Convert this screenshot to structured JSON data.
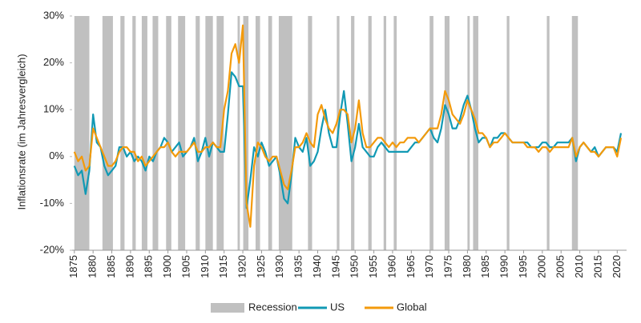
{
  "chart_data": {
    "type": "line",
    "y_label": "Inflationsrate (im Jahresvergleich)",
    "x": [
      1875,
      1876,
      1877,
      1878,
      1879,
      1880,
      1881,
      1882,
      1883,
      1884,
      1885,
      1886,
      1887,
      1888,
      1889,
      1890,
      1891,
      1892,
      1893,
      1894,
      1895,
      1896,
      1897,
      1898,
      1899,
      1900,
      1901,
      1902,
      1903,
      1904,
      1905,
      1906,
      1907,
      1908,
      1909,
      1910,
      1911,
      1912,
      1913,
      1914,
      1915,
      1916,
      1917,
      1918,
      1919,
      1920,
      1921,
      1922,
      1923,
      1924,
      1925,
      1926,
      1927,
      1928,
      1929,
      1930,
      1931,
      1932,
      1933,
      1934,
      1935,
      1936,
      1937,
      1938,
      1939,
      1940,
      1941,
      1942,
      1943,
      1944,
      1945,
      1946,
      1947,
      1948,
      1949,
      1950,
      1951,
      1952,
      1953,
      1954,
      1955,
      1956,
      1957,
      1958,
      1959,
      1960,
      1961,
      1962,
      1963,
      1964,
      1965,
      1966,
      1967,
      1968,
      1969,
      1970,
      1971,
      1972,
      1973,
      1974,
      1975,
      1976,
      1977,
      1978,
      1979,
      1980,
      1981,
      1982,
      1983,
      1984,
      1985,
      1986,
      1987,
      1988,
      1989,
      1990,
      1991,
      1992,
      1993,
      1994,
      1995,
      1996,
      1997,
      1998,
      1999,
      2000,
      2001,
      2002,
      2003,
      2004,
      2005,
      2006,
      2007,
      2008,
      2009,
      2010,
      2011,
      2012,
      2013,
      2014,
      2015,
      2016,
      2017,
      2018,
      2019,
      2020,
      2021
    ],
    "series": [
      {
        "name": "US",
        "color": "#1199b4",
        "values": [
          -2,
          -4,
          -3,
          -8,
          -3,
          9,
          3,
          2,
          -2,
          -4,
          -3,
          -2,
          2,
          2,
          0,
          1,
          -1,
          0,
          -1,
          -3,
          0,
          -1,
          1,
          2,
          4,
          3,
          1,
          2,
          3,
          0,
          1,
          2,
          4,
          -1,
          1,
          4,
          0,
          3,
          2,
          1,
          1,
          9,
          18,
          17,
          15,
          15,
          -11,
          -5,
          2,
          0,
          3,
          1,
          -2,
          -1,
          0,
          -4,
          -9,
          -10,
          -4,
          4,
          2,
          1,
          4,
          -2,
          -1,
          1,
          6,
          10,
          5,
          2,
          2,
          9,
          14,
          7,
          -1,
          2,
          7,
          2,
          1,
          0,
          0,
          2,
          3,
          2,
          1,
          1,
          1,
          1,
          1,
          1,
          2,
          3,
          3,
          4,
          5,
          6,
          4,
          3,
          6,
          11,
          9,
          6,
          6,
          8,
          11,
          13,
          10,
          6,
          3,
          4,
          4,
          2,
          4,
          4,
          5,
          5,
          4,
          3,
          3,
          3,
          3,
          3,
          2,
          2,
          2,
          3,
          3,
          2,
          2,
          3,
          3,
          3,
          3,
          4,
          -1,
          2,
          3,
          2,
          1,
          2,
          0,
          1,
          2,
          2,
          2,
          1,
          5
        ]
      },
      {
        "name": "Global",
        "color": "#f39a0b",
        "values": [
          1,
          -1,
          0,
          -3,
          -2,
          6,
          4,
          2,
          0,
          -2,
          -2,
          -1,
          1,
          2,
          2,
          1,
          1,
          -1,
          0,
          -2,
          -1,
          0,
          1,
          2,
          2,
          3,
          1,
          0,
          1,
          1,
          1,
          2,
          3,
          1,
          1,
          2,
          2,
          3,
          2,
          2,
          10,
          14,
          22,
          24,
          20,
          28,
          -10,
          -15,
          -2,
          3,
          2,
          0,
          -1,
          0,
          0,
          -3,
          -6,
          -7,
          -3,
          2,
          2,
          3,
          5,
          3,
          2,
          9,
          11,
          8,
          6,
          5,
          7,
          10,
          10,
          9,
          3,
          6,
          12,
          5,
          2,
          2,
          3,
          4,
          4,
          3,
          2,
          3,
          2,
          3,
          3,
          4,
          4,
          4,
          3,
          4,
          5,
          6,
          6,
          6,
          9,
          14,
          12,
          9,
          8,
          7,
          9,
          12,
          10,
          8,
          5,
          5,
          4,
          2,
          3,
          3,
          4,
          5,
          4,
          3,
          3,
          3,
          3,
          2,
          2,
          2,
          1,
          2,
          2,
          1,
          2,
          2,
          2,
          2,
          2,
          4,
          0,
          2,
          3,
          2,
          1,
          1,
          0,
          1,
          2,
          2,
          2,
          0,
          4
        ]
      }
    ],
    "recessions": {
      "name": "Recession",
      "color": "#c0c0c0",
      "periods": [
        [
          1875,
          1879
        ],
        [
          1882.5,
          1885.3
        ],
        [
          1887.3,
          1888.4
        ],
        [
          1890.5,
          1891.4
        ],
        [
          1893,
          1894.5
        ],
        [
          1895.9,
          1897.4
        ],
        [
          1899.5,
          1900.9
        ],
        [
          1902.7,
          1904.6
        ],
        [
          1907.4,
          1908.5
        ],
        [
          1910,
          1912
        ],
        [
          1913,
          1914.9
        ],
        [
          1918.6,
          1919.2
        ],
        [
          1920.1,
          1921.5
        ],
        [
          1923.4,
          1924.6
        ],
        [
          1926.8,
          1927.8
        ],
        [
          1929.6,
          1933.2
        ],
        [
          1937.4,
          1938.5
        ],
        [
          1945.1,
          1945.8
        ],
        [
          1948.9,
          1949.8
        ],
        [
          1953.5,
          1954.4
        ],
        [
          1957.6,
          1958.3
        ],
        [
          1960.3,
          1961.1
        ],
        [
          1969.9,
          1970.9
        ],
        [
          1973.9,
          1975.2
        ],
        [
          1980,
          1980.6
        ],
        [
          1981.5,
          1982.9
        ],
        [
          1990.5,
          1991.2
        ],
        [
          2001.2,
          2001.9
        ],
        [
          2007.9,
          2009.5
        ]
      ]
    },
    "xlim": [
      1874.4,
      2022.5
    ],
    "ylim": [
      -20,
      30
    ],
    "xticks": [
      1875,
      1880,
      1885,
      1890,
      1895,
      1900,
      1905,
      1910,
      1915,
      1920,
      1925,
      1930,
      1935,
      1940,
      1945,
      1950,
      1955,
      1960,
      1965,
      1970,
      1975,
      1980,
      1985,
      1990,
      1995,
      2000,
      2005,
      2010,
      2015,
      2020
    ],
    "yticks": [
      {
        "value": -20,
        "label": "-20%"
      },
      {
        "value": -10,
        "label": "-10%"
      },
      {
        "value": 0,
        "label": "0%"
      },
      {
        "value": 10,
        "label": "10%"
      },
      {
        "value": 20,
        "label": "20%"
      },
      {
        "value": 30,
        "label": "30%"
      }
    ],
    "grid": false,
    "legend": "bottom"
  }
}
